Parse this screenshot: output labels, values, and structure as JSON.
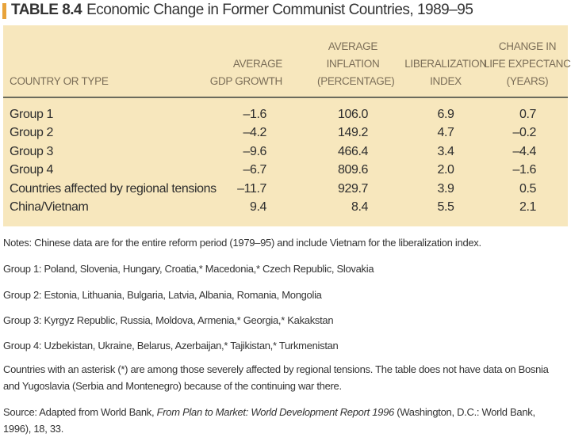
{
  "title": {
    "label": "TABLE 8.4",
    "text": "Economic Change in Former Communist Countries, 1989–95"
  },
  "columns": {
    "country": "COUNTRY OR TYPE",
    "gdp": [
      "AVERAGE",
      "GDP GROWTH"
    ],
    "inflation": [
      "AVERAGE",
      "INFLATION",
      "(PERCENTAGE)"
    ],
    "liberalization": [
      "LIBERALIZATION",
      "INDEX"
    ],
    "life": [
      "CHANGE IN",
      "LIFE EXPECTANCY",
      "(YEARS)"
    ]
  },
  "rows": [
    {
      "name": "Group 1",
      "gdp": "–1.6",
      "inflation": "106.0",
      "lib": "6.9",
      "life": "0.7"
    },
    {
      "name": "Group 2",
      "gdp": "–4.2",
      "inflation": "149.2",
      "lib": "4.7",
      "life": "–0.2"
    },
    {
      "name": "Group 3",
      "gdp": "–9.6",
      "inflation": "466.4",
      "lib": "3.4",
      "life": "–4.4"
    },
    {
      "name": "Group 4",
      "gdp": "–6.7",
      "inflation": "809.6",
      "lib": "2.0",
      "life": "–1.6"
    },
    {
      "name": "Countries affected by regional tensions",
      "gdp": "–11.7",
      "inflation": "929.7",
      "lib": "3.9",
      "life": "0.5"
    },
    {
      "name": "China/Vietnam",
      "gdp": "9.4",
      "inflation": "8.4",
      "lib": "5.5",
      "life": "2.1"
    }
  ],
  "notes": {
    "n1": "Notes: Chinese data are for the entire reform period (1979–95) and include Vietnam for the liberalization index.",
    "n2": "Group 1: Poland, Slovenia, Hungary, Croatia,* Macedonia,* Czech Republic, Slovakia",
    "n3": "Group 2: Estonia, Lithuania, Bulgaria, Latvia, Albania, Romania, Mongolia",
    "n4": "Group 3: Kyrgyz Republic, Russia, Moldova, Armenia,* Georgia,* Kakakstan",
    "n5": "Group 4: Uzbekistan, Ukraine, Belarus, Azerbaijan,* Tajikistan,* Turkmenistan",
    "n6": "Countries with an asterisk (*) are among those severely affected by regional tensions. The table does not have data on Bosnia and Yugoslavia (Serbia and Montenegro) because of the continuing war there.",
    "source_prefix": "Source: Adapted from World Bank, ",
    "source_title": "From Plan to Market: World Development Report 1996",
    "source_suffix": " (Washington, D.C.: World Bank, 1996), 18, 33."
  }
}
